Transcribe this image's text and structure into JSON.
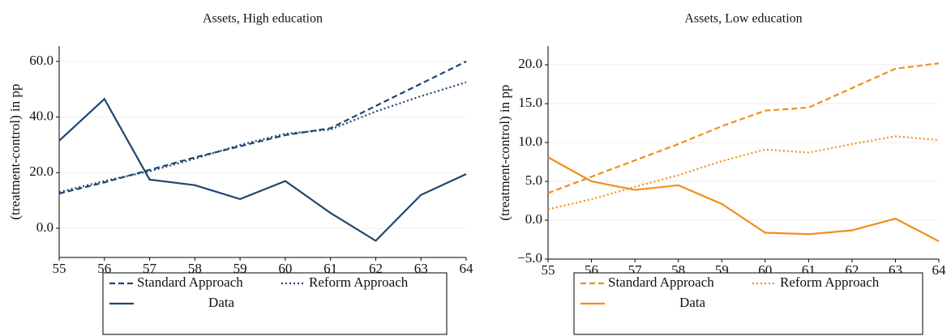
{
  "chart_data": [
    {
      "type": "line",
      "title": "Assets, High education",
      "ylabel": "(treatment-control) in pp",
      "x": [
        55,
        56,
        57,
        58,
        59,
        60,
        61,
        62,
        63,
        64
      ],
      "xlim": [
        55,
        64
      ],
      "xticks": [
        55,
        56,
        57,
        58,
        59,
        60,
        61,
        62,
        63,
        64
      ],
      "ylim": [
        -10.5,
        65.5
      ],
      "yticks": [
        {
          "value": 0,
          "label": "0.0"
        },
        {
          "value": 20,
          "label": "20.0"
        },
        {
          "value": 40,
          "label": "40.0"
        },
        {
          "value": 60,
          "label": "60.0"
        }
      ],
      "grid": true,
      "series": [
        {
          "name": "Standard Approach",
          "color": "#1f4670",
          "style": "dashed",
          "values": [
            12.5,
            16.5,
            21,
            25.5,
            29.5,
            33.5,
            36,
            44,
            52,
            60
          ]
        },
        {
          "name": "Reform Approach",
          "color": "#1f4670",
          "style": "dotted",
          "values": [
            13,
            17,
            20.5,
            25,
            30,
            34,
            35.5,
            42,
            47.5,
            52.5
          ]
        },
        {
          "name": "Data",
          "color": "#1f4670",
          "style": "solid",
          "values": [
            31.5,
            46.5,
            17.5,
            15.5,
            10.5,
            17,
            5.5,
            -4.5,
            12,
            19.5
          ]
        }
      ]
    },
    {
      "type": "line",
      "title": "Assets, Low education",
      "ylabel": "(treatment-control) in pp",
      "x": [
        55,
        56,
        57,
        58,
        59,
        60,
        61,
        62,
        63,
        64
      ],
      "xlim": [
        55,
        64
      ],
      "xticks": [
        55,
        56,
        57,
        58,
        59,
        60,
        61,
        62,
        63,
        64
      ],
      "ylim": [
        -5,
        22.4
      ],
      "yticks": [
        {
          "value": -5,
          "label": "−5.0"
        },
        {
          "value": 0,
          "label": "0.0"
        },
        {
          "value": 5,
          "label": "5.0"
        },
        {
          "value": 10,
          "label": "10.0"
        },
        {
          "value": 15,
          "label": "15.0"
        },
        {
          "value": 20,
          "label": "20.0"
        }
      ],
      "grid": true,
      "series": [
        {
          "name": "Standard Approach",
          "color": "#f28e1c",
          "style": "dashed",
          "values": [
            3.5,
            5.6,
            7.7,
            9.8,
            12.1,
            14.1,
            14.5,
            17,
            19.5,
            20.2
          ]
        },
        {
          "name": "Reform Approach",
          "color": "#f28e1c",
          "style": "dotted",
          "values": [
            1.4,
            2.7,
            4.3,
            5.8,
            7.6,
            9.1,
            8.7,
            9.8,
            10.8,
            10.3
          ]
        },
        {
          "name": "Data",
          "color": "#f28e1c",
          "style": "solid",
          "values": [
            8.1,
            5,
            3.9,
            4.5,
            2.1,
            -1.6,
            -1.8,
            -1.3,
            0.2,
            -2.7
          ]
        }
      ]
    }
  ]
}
